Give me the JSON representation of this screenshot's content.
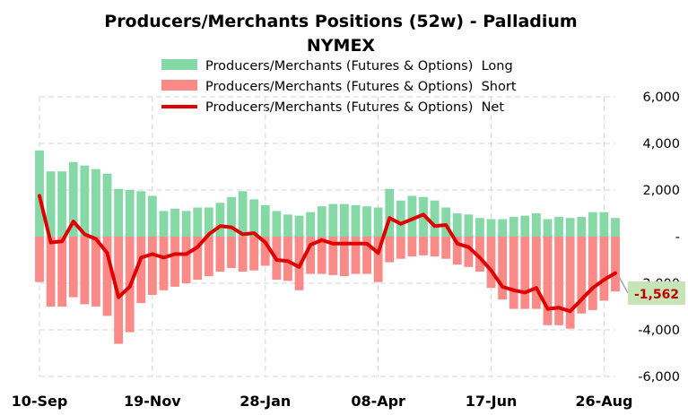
{
  "chart_data": {
    "type": "bar",
    "title": "Producers/Merchants  Positions  (52w) - Palladium",
    "subtitle": "NYMEX",
    "x_tick_labels": [
      "10-Sep",
      "19-Nov",
      "28-Jan",
      "08-Apr",
      "17-Jun",
      "26-Aug"
    ],
    "x_tick_indices": [
      0,
      10,
      20,
      30,
      40,
      50
    ],
    "y_tick_labels": [
      "6,000",
      "4,000",
      "2,000",
      "-",
      "-2,000",
      "-4,000",
      "-6,000"
    ],
    "y_ticks": [
      6000,
      4000,
      2000,
      0,
      -2000,
      -4000,
      -6000
    ],
    "ylim": [
      -6000,
      6000
    ],
    "grid": true,
    "legend_position": "top",
    "colors": {
      "long": "#86d9a6",
      "short": "#f98a88",
      "net": "#e00000",
      "grid": "#d4d4d4",
      "callout_bg": "#c6e4b5",
      "callout_text": "#c00000"
    },
    "series": [
      {
        "name": "Producers/Merchants (Futures & Options)  Long",
        "kind": "bar",
        "values": [
          3700,
          2800,
          2800,
          3200,
          3050,
          2900,
          2700,
          2050,
          2000,
          1950,
          1750,
          1100,
          1200,
          1100,
          1250,
          1250,
          1450,
          1700,
          1950,
          1600,
          1350,
          1100,
          950,
          900,
          1050,
          1300,
          1400,
          1400,
          1350,
          1300,
          1250,
          2050,
          1550,
          1750,
          1700,
          1550,
          1250,
          1000,
          950,
          800,
          750,
          750,
          850,
          900,
          1000,
          750,
          850,
          800,
          850,
          1050,
          1050,
          800
        ]
      },
      {
        "name": "Producers/Merchants (Futures & Options)  Short",
        "kind": "bar",
        "values": [
          -1950,
          -3000,
          -3000,
          -2600,
          -2900,
          -3000,
          -3400,
          -4600,
          -4100,
          -2850,
          -2500,
          -2300,
          -2150,
          -2000,
          -1850,
          -1700,
          -1500,
          -1350,
          -1500,
          -1450,
          -1250,
          -1850,
          -1900,
          -2300,
          -1600,
          -1600,
          -1650,
          -1700,
          -1600,
          -1600,
          -1950,
          -1100,
          -950,
          -850,
          -800,
          -850,
          -950,
          -1200,
          -1300,
          -1500,
          -2200,
          -2700,
          -3100,
          -3100,
          -3100,
          -3800,
          -3800,
          -3950,
          -3300,
          -3150,
          -2750,
          -2350
        ]
      },
      {
        "name": "Producers/Merchants (Futures & Options)  Net",
        "kind": "line",
        "values": [
          1750,
          -250,
          -200,
          650,
          100,
          -100,
          -700,
          -2600,
          -2150,
          -900,
          -750,
          -900,
          -750,
          -750,
          -450,
          100,
          450,
          400,
          100,
          150,
          -250,
          -1000,
          -1050,
          -1300,
          -350,
          -150,
          -300,
          -300,
          -300,
          -300,
          -700,
          800,
          550,
          750,
          950,
          450,
          500,
          -300,
          -450,
          -900,
          -1450,
          -2150,
          -2300,
          -2400,
          -2200,
          -3100,
          -3050,
          -3200,
          -2700,
          -2200,
          -1850,
          -1562
        ]
      }
    ],
    "last_value_label": "-1,562"
  }
}
